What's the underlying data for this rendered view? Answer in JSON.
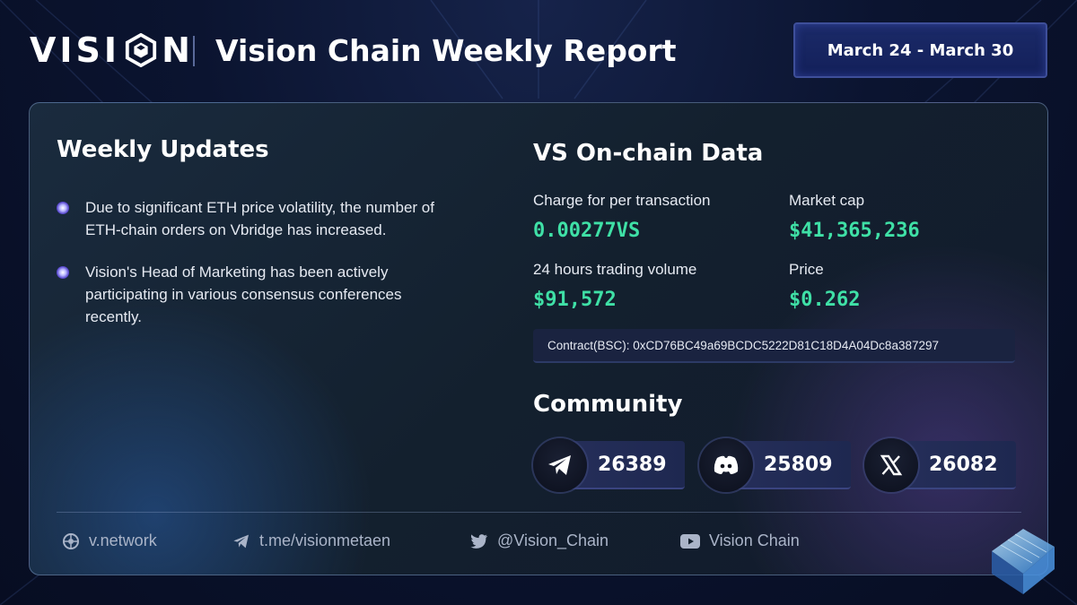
{
  "header": {
    "logo_left": "VISI",
    "logo_right": "N",
    "title": "Vision Chain Weekly Report",
    "date_range": "March 24 - March 30"
  },
  "weekly_updates": {
    "title": "Weekly Updates",
    "items": [
      "Due to significant ETH price volatility, the number of ETH-chain orders on Vbridge has increased.",
      "Vision's Head of Marketing has been actively participating in various consensus conferences recently."
    ]
  },
  "onchain": {
    "title": "VS On-chain Data",
    "charge_label": "Charge for per transaction",
    "charge_value": "0.00277VS",
    "market_cap_label": "Market cap",
    "market_cap_value": "$41,365,236",
    "volume_label": "24 hours trading volume",
    "volume_value": "$91,572",
    "price_label": "Price",
    "price_value": "$0.262",
    "contract": "Contract(BSC): 0xCD76BC49a69BCDC5222D81C18D4A04Dc8a387297"
  },
  "community": {
    "title": "Community",
    "telegram_icon": "telegram-icon",
    "telegram_count": "26389",
    "discord_icon": "discord-icon",
    "discord_count": "25809",
    "x_icon": "x-icon",
    "x_count": "26082"
  },
  "footer": {
    "website": "v.network",
    "telegram": "t.me/visionmetaen",
    "twitter": "@Vision_Chain",
    "youtube": "Vision Chain"
  },
  "colors": {
    "accent_green": "#3fe0a6",
    "background": "#0b1430"
  }
}
